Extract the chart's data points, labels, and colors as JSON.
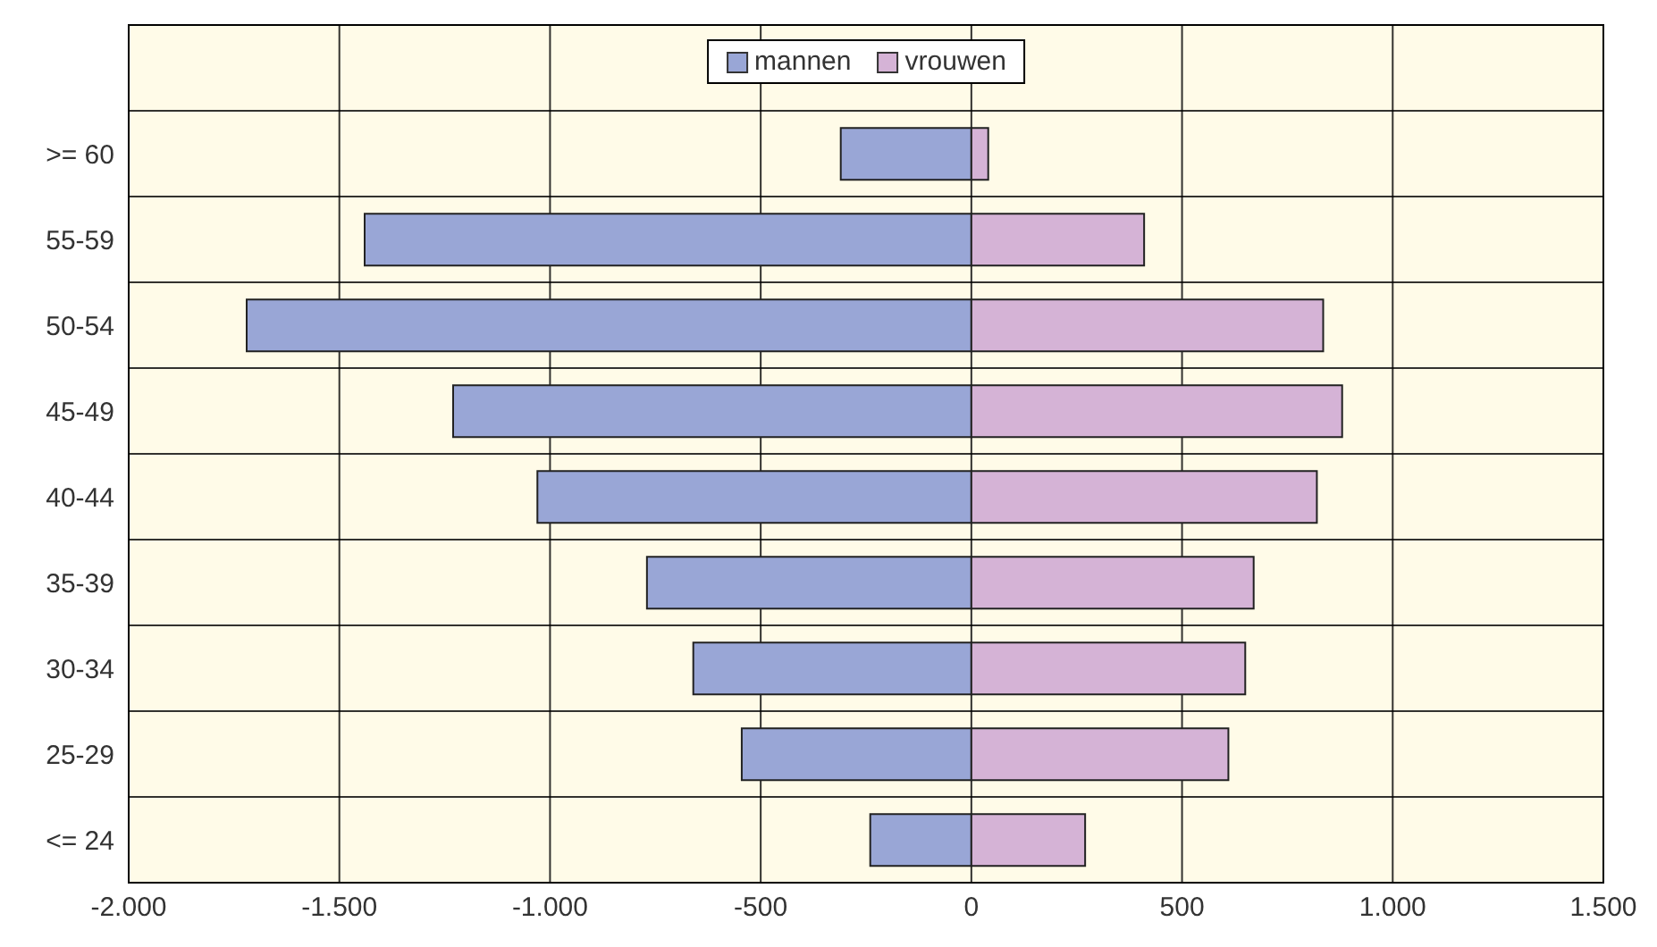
{
  "chart_data": {
    "type": "bar",
    "orientation": "horizontal",
    "stacked": true,
    "categories": [
      null,
      ">= 60",
      "55-59",
      "50-54",
      "45-49",
      "40-44",
      "35-39",
      "30-34",
      "25-29",
      "<= 24"
    ],
    "series": [
      {
        "name": "mannen",
        "color": "#99a6d6",
        "values": [
          null,
          -310,
          -1440,
          -1720,
          -1230,
          -1030,
          -770,
          -660,
          -545,
          -240
        ]
      },
      {
        "name": "vrouwen",
        "color": "#d5b3d6",
        "values": [
          null,
          40,
          410,
          835,
          880,
          820,
          670,
          650,
          610,
          270
        ]
      }
    ],
    "xlim": [
      -2000,
      1500
    ],
    "xticks": [
      {
        "value": -2000,
        "label": "-2.000"
      },
      {
        "value": -1500,
        "label": "-1.500"
      },
      {
        "value": -1000,
        "label": "-1.000"
      },
      {
        "value": -500,
        "label": "-500"
      },
      {
        "value": 0,
        "label": "0"
      },
      {
        "value": 500,
        "label": "500"
      },
      {
        "value": 1000,
        "label": "1.000"
      },
      {
        "value": 1500,
        "label": "1.500"
      }
    ],
    "grid": true,
    "legend": "top"
  }
}
